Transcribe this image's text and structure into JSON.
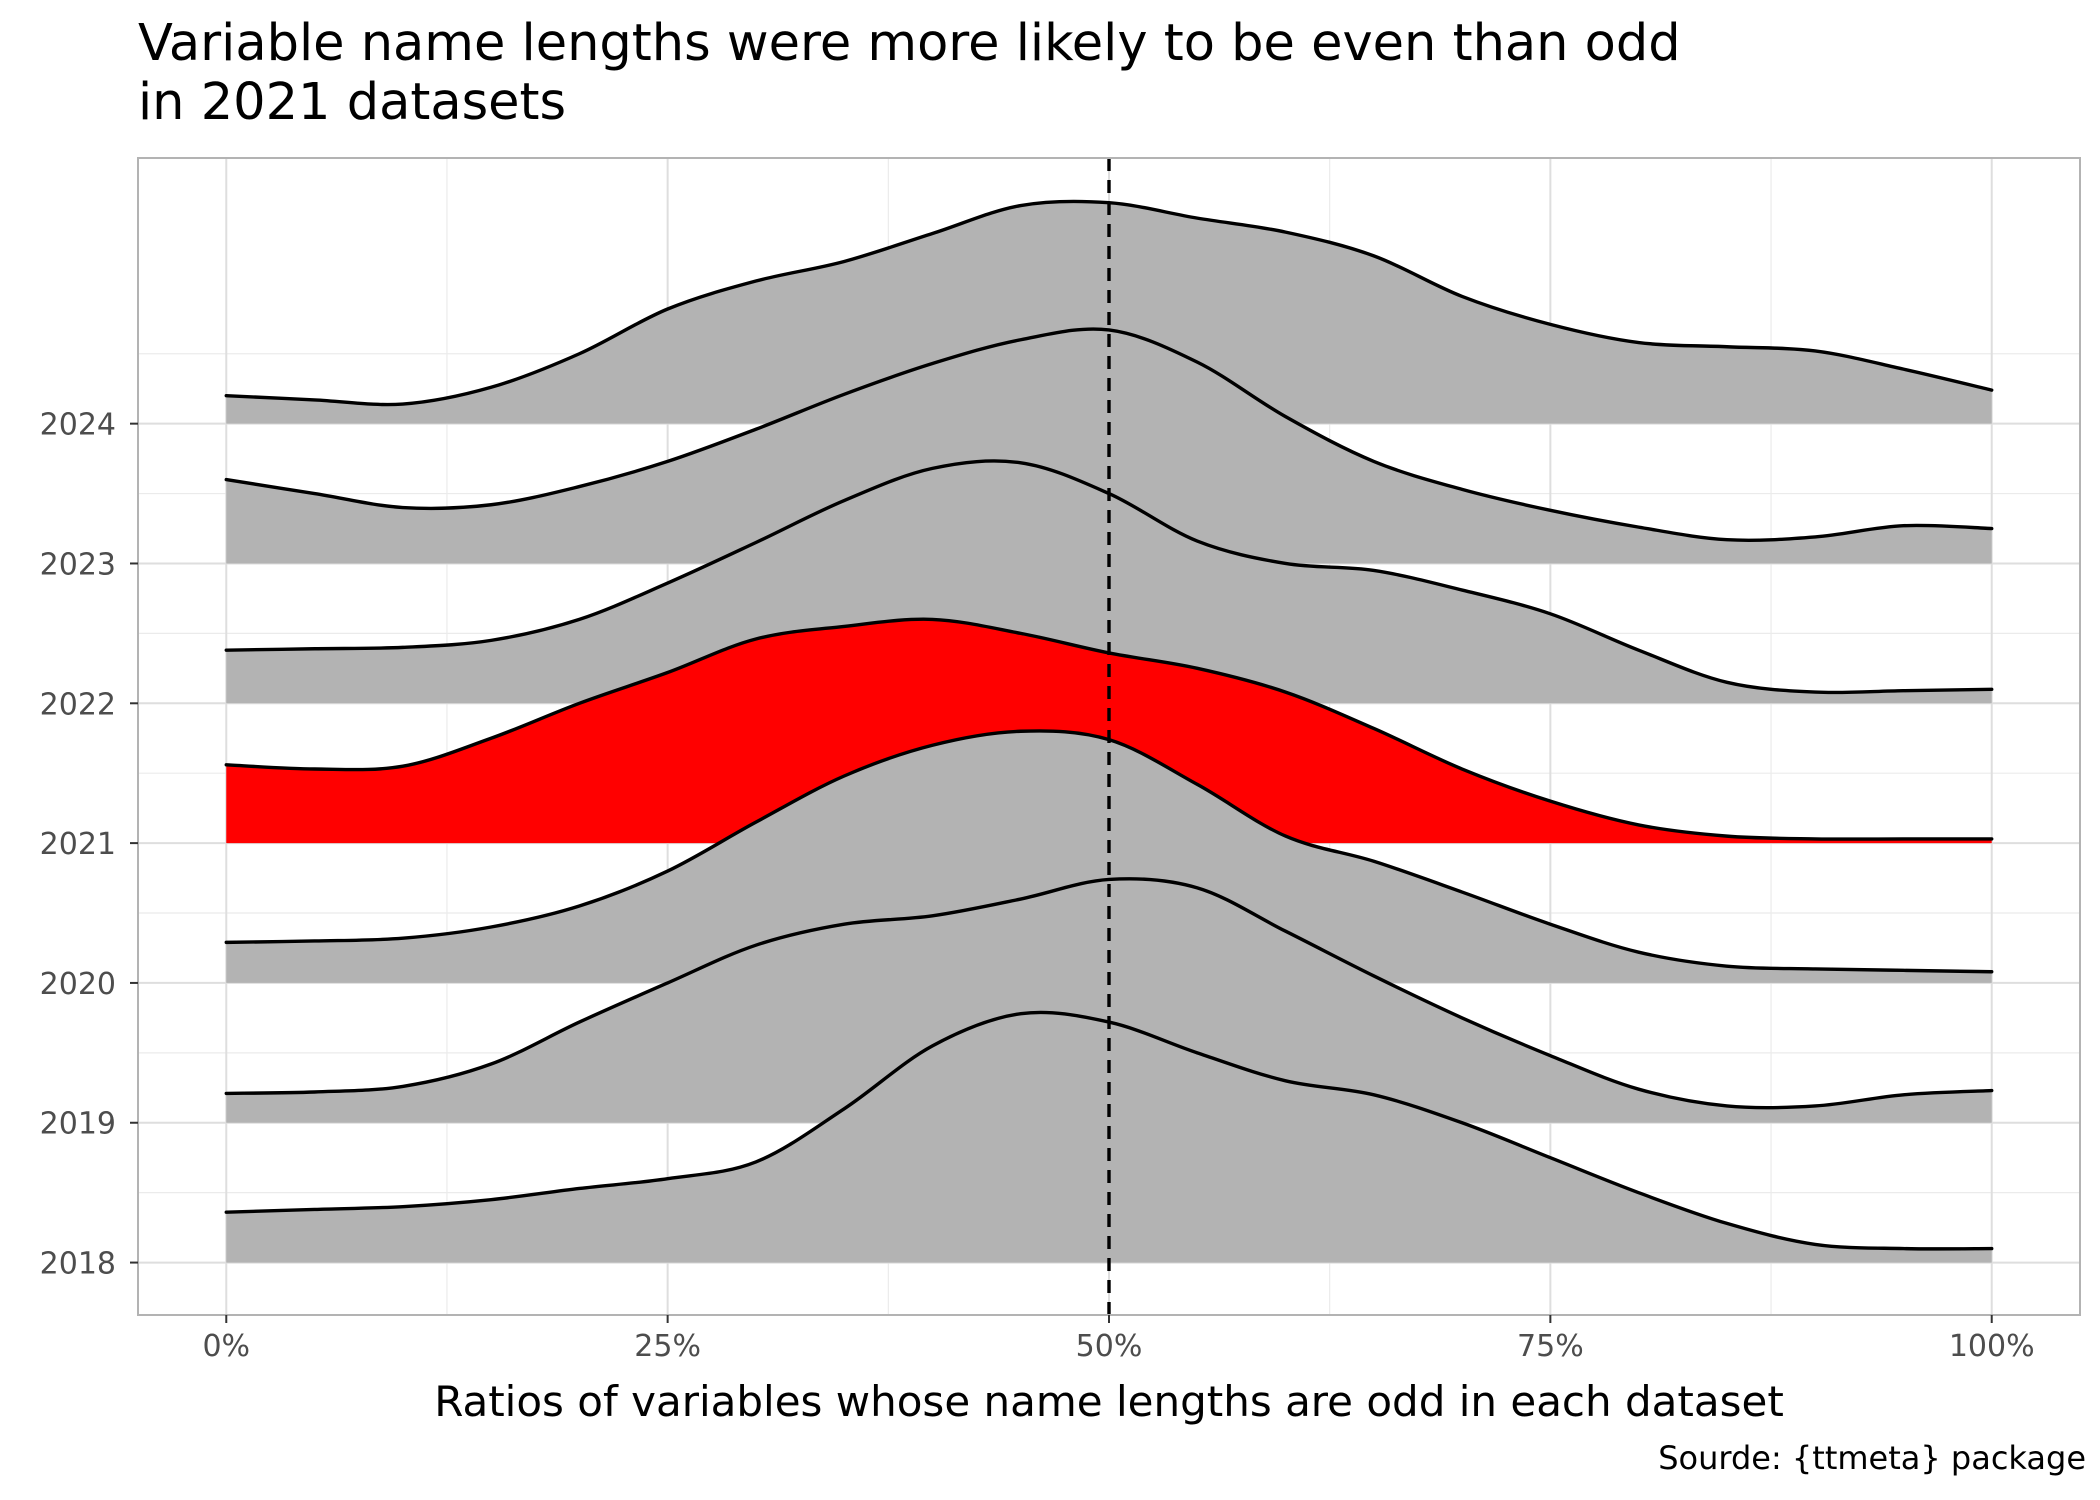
{
  "chart_data": {
    "type": "ridgeline-density",
    "title_line1": "Variable name lengths were more likely to be even than odd",
    "title_line2": "in 2021 datasets",
    "xlabel": "Ratios of variables whose name lengths are odd in each dataset",
    "ylabel": "",
    "caption": "Sourde: {ttmeta} package",
    "xlim": [
      -0.05,
      1.05
    ],
    "x_ticks": [
      0,
      0.25,
      0.5,
      0.75,
      1.0
    ],
    "x_tick_labels": [
      "0%",
      "25%",
      "50%",
      "75%",
      "100%"
    ],
    "y_categories": [
      "2018",
      "2019",
      "2020",
      "2021",
      "2022",
      "2023",
      "2024"
    ],
    "ylim": [
      -0.375,
      7.9
    ],
    "reference_line": {
      "x": 0.5,
      "style": "dashed"
    },
    "highlight": {
      "category": "2021",
      "color": "#ff0000"
    },
    "fill_default": "#b3b3b3",
    "grid": true,
    "series": [
      {
        "name": "2018",
        "x": [
          0,
          0.05,
          0.1,
          0.15,
          0.2,
          0.25,
          0.3,
          0.35,
          0.4,
          0.45,
          0.5,
          0.55,
          0.6,
          0.65,
          0.7,
          0.75,
          0.8,
          0.85,
          0.9,
          0.95,
          1.0
        ],
        "density": [
          0.36,
          0.38,
          0.4,
          0.45,
          0.53,
          0.6,
          0.72,
          1.1,
          1.55,
          1.78,
          1.72,
          1.5,
          1.3,
          1.2,
          1.0,
          0.75,
          0.5,
          0.28,
          0.13,
          0.1,
          0.1
        ]
      },
      {
        "name": "2019",
        "x": [
          0,
          0.05,
          0.1,
          0.15,
          0.2,
          0.25,
          0.3,
          0.35,
          0.4,
          0.45,
          0.5,
          0.55,
          0.6,
          0.65,
          0.7,
          0.75,
          0.8,
          0.85,
          0.9,
          0.95,
          1.0
        ],
        "density": [
          0.21,
          0.22,
          0.26,
          0.42,
          0.72,
          1.0,
          1.27,
          1.42,
          1.48,
          1.6,
          1.74,
          1.68,
          1.37,
          1.05,
          0.75,
          0.48,
          0.24,
          0.12,
          0.12,
          0.2,
          0.23
        ]
      },
      {
        "name": "2020",
        "x": [
          0,
          0.05,
          0.1,
          0.15,
          0.2,
          0.25,
          0.3,
          0.35,
          0.4,
          0.45,
          0.5,
          0.55,
          0.6,
          0.65,
          0.7,
          0.75,
          0.8,
          0.85,
          0.9,
          0.95,
          1.0
        ],
        "density": [
          0.29,
          0.3,
          0.32,
          0.4,
          0.55,
          0.8,
          1.15,
          1.48,
          1.7,
          1.8,
          1.74,
          1.42,
          1.05,
          0.87,
          0.65,
          0.42,
          0.22,
          0.12,
          0.1,
          0.09,
          0.08
        ]
      },
      {
        "name": "2021",
        "x": [
          0,
          0.05,
          0.1,
          0.15,
          0.2,
          0.25,
          0.3,
          0.35,
          0.4,
          0.45,
          0.5,
          0.55,
          0.6,
          0.65,
          0.7,
          0.75,
          0.8,
          0.85,
          0.9,
          0.95,
          1.0
        ],
        "density": [
          0.56,
          0.53,
          0.55,
          0.75,
          1.0,
          1.22,
          1.46,
          1.55,
          1.6,
          1.5,
          1.36,
          1.25,
          1.08,
          0.82,
          0.53,
          0.3,
          0.13,
          0.05,
          0.03,
          0.03,
          0.03
        ]
      },
      {
        "name": "2022",
        "x": [
          0,
          0.05,
          0.1,
          0.15,
          0.2,
          0.25,
          0.3,
          0.35,
          0.4,
          0.45,
          0.5,
          0.55,
          0.6,
          0.65,
          0.7,
          0.75,
          0.8,
          0.85,
          0.9,
          0.95,
          1.0
        ],
        "density": [
          0.38,
          0.39,
          0.4,
          0.45,
          0.6,
          0.86,
          1.15,
          1.45,
          1.68,
          1.72,
          1.5,
          1.16,
          1.0,
          0.95,
          0.81,
          0.64,
          0.38,
          0.15,
          0.08,
          0.09,
          0.1
        ]
      },
      {
        "name": "2023",
        "x": [
          0,
          0.05,
          0.1,
          0.15,
          0.2,
          0.25,
          0.3,
          0.35,
          0.4,
          0.45,
          0.5,
          0.55,
          0.6,
          0.65,
          0.7,
          0.75,
          0.8,
          0.85,
          0.9,
          0.95,
          1.0
        ],
        "density": [
          0.6,
          0.5,
          0.4,
          0.42,
          0.55,
          0.73,
          0.96,
          1.21,
          1.43,
          1.6,
          1.67,
          1.44,
          1.05,
          0.73,
          0.53,
          0.38,
          0.26,
          0.17,
          0.19,
          0.27,
          0.25
        ]
      },
      {
        "name": "2024",
        "x": [
          0,
          0.05,
          0.1,
          0.15,
          0.2,
          0.25,
          0.3,
          0.35,
          0.4,
          0.45,
          0.5,
          0.55,
          0.6,
          0.65,
          0.7,
          0.75,
          0.8,
          0.85,
          0.9,
          0.95,
          1.0
        ],
        "density": [
          0.2,
          0.17,
          0.14,
          0.26,
          0.5,
          0.82,
          1.02,
          1.16,
          1.36,
          1.56,
          1.58,
          1.47,
          1.37,
          1.2,
          0.91,
          0.71,
          0.58,
          0.55,
          0.52,
          0.39,
          0.24
        ]
      }
    ]
  }
}
